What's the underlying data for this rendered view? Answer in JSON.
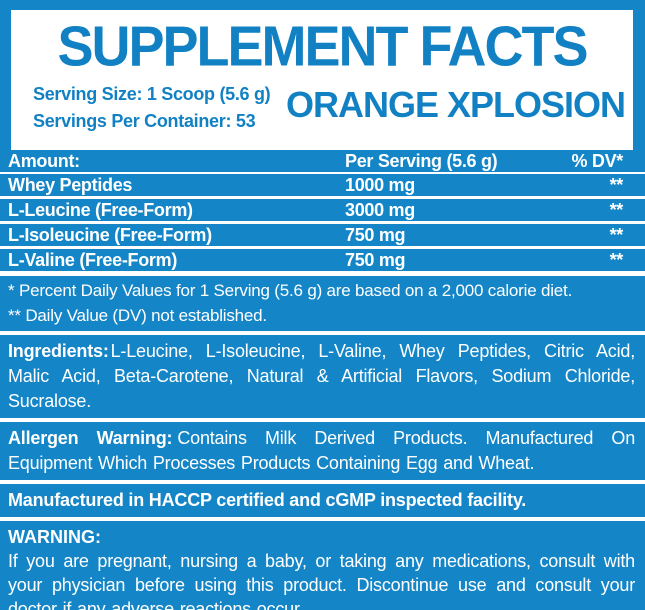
{
  "colors": {
    "brand_blue": "#1486c8",
    "panel_white": "#ffffff"
  },
  "header": {
    "title": "SUPPLEMENT FACTS",
    "serving_size": "Serving Size: 1 Scoop (5.6 g)",
    "servings_per_container": "Servings Per Container: 53",
    "flavor": "ORANGE XPLOSION"
  },
  "table": {
    "columns": [
      "Amount:",
      "Per Serving (5.6 g)",
      "% DV*"
    ],
    "rows": [
      {
        "name": "Whey Peptides",
        "amount": "1000 mg",
        "dv": "**"
      },
      {
        "name": "L-Leucine (Free-Form)",
        "amount": "3000 mg",
        "dv": "**"
      },
      {
        "name": "L-Isoleucine (Free-Form)",
        "amount": "750 mg",
        "dv": "**"
      },
      {
        "name": "L-Valine (Free-Form)",
        "amount": "750 mg",
        "dv": "**"
      }
    ]
  },
  "footnotes": {
    "daily_value": "* Percent Daily Values for 1 Serving (5.6 g) are based on a 2,000 calorie diet.",
    "not_established": "** Daily Value (DV) not established."
  },
  "ingredients": {
    "label": "Ingredients:",
    "text": "L-Leucine, L-Isoleucine, L-Valine, Whey Peptides, Citric Acid, Malic Acid, Beta-Carotene, Natural & Artificial Flavors, Sodium Chloride, Sucralose."
  },
  "allergen": {
    "label": "Allergen Warning:",
    "text": "Contains Milk Derived Products. Manufactured On Equipment Which Processes Products Containing Egg and Wheat."
  },
  "manufacturing": "Manufactured in HACCP certified and cGMP inspected facility.",
  "warning": {
    "label": "WARNING:",
    "text": "If you are pregnant, nursing a baby, or taking any medications, consult with your physician before using this product. Discontinue use and consult your doctor if any adverse reactions occur."
  }
}
